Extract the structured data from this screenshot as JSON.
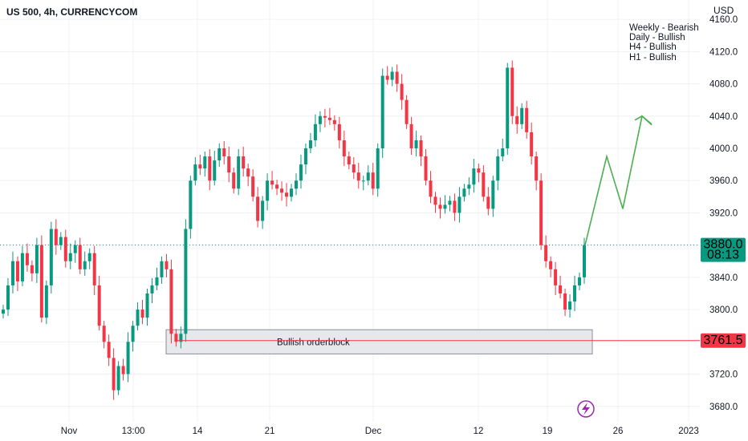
{
  "header": {
    "title": "US 500, 4h, CURRENCYCOM",
    "currency": "USD"
  },
  "bias_notes": [
    "Weekly - Bearish",
    "Daily - Bullish",
    "H4 - Bullish",
    "H1 - Bullish"
  ],
  "price_axis": {
    "ticks": [
      "4160.0",
      "4120.0",
      "4080.0",
      "4040.0",
      "4000.0",
      "3960.0",
      "3920.0",
      "3840.0",
      "3800.0",
      "3720.0",
      "3680.0"
    ]
  },
  "time_axis": {
    "ticks": [
      "Nov",
      "13:00",
      "14",
      "21",
      "Dec",
      "12",
      "19",
      "26",
      "2023"
    ]
  },
  "current_price": {
    "value": "3880.0",
    "countdown": "08:13",
    "color": "#089981"
  },
  "level_line": {
    "value": "3761.5",
    "color": "#f23645"
  },
  "orderblock": {
    "label": "Bullish orderblock",
    "top": 3775,
    "bottom": 3745
  },
  "colors": {
    "up": "#089981",
    "down": "#f23645",
    "projection": "#4caf50",
    "badge": "#9c27b0"
  },
  "chart_data": {
    "type": "candlestick",
    "title": "US 500, 4h, CURRENCYCOM",
    "xlabel": "",
    "ylabel": "USD",
    "ylim": [
      3660,
      4175
    ],
    "x_ticks": [
      "Nov",
      "13:00",
      "14",
      "21",
      "Dec",
      "12",
      "19",
      "26",
      "2023"
    ],
    "series": [
      {
        "values": [
          3800,
          3830,
          3860,
          3835,
          3870,
          3855,
          3845,
          3880,
          3790,
          3830,
          3900,
          3880,
          3890,
          3860,
          3870,
          3880,
          3850,
          3860,
          3870,
          3830,
          3780,
          3760,
          3740,
          3700,
          3730,
          3720,
          3760,
          3780,
          3800,
          3790,
          3820,
          3830,
          3840,
          3860,
          3850,
          3770,
          3760,
          3770,
          3900,
          3960,
          3980,
          3975,
          3990,
          3960,
          3985,
          4000,
          3990,
          3970,
          3950,
          3990,
          3975,
          3965,
          3940,
          3910,
          3935,
          3960,
          3955,
          3950,
          3945,
          3940,
          3950,
          3960,
          3980,
          4000,
          4010,
          4030,
          4040,
          4038,
          4035,
          4030,
          4010,
          3990,
          3980,
          3970,
          3960,
          3960,
          3970,
          3950,
          4000,
          4090,
          4085,
          4095,
          4080,
          4060,
          4030,
          4000,
          4010,
          3990,
          3960,
          3940,
          3930,
          3925,
          3930,
          3935,
          3920,
          3940,
          3950,
          3955,
          3975,
          3970,
          3940,
          3925,
          3960,
          3990,
          4000,
          4100,
          4040,
          4030,
          4050,
          4020,
          3990,
          3960,
          3880,
          3860,
          3850,
          3830,
          3820,
          3800,
          3810,
          3830,
          3840,
          3880
        ]
      }
    ],
    "current_price": 3880.0,
    "horizontal_line": 3761.5,
    "orderblock_zone": [
      3745,
      3775
    ],
    "projection": [
      3880,
      3990,
      3925,
      4040,
      4030
    ]
  }
}
